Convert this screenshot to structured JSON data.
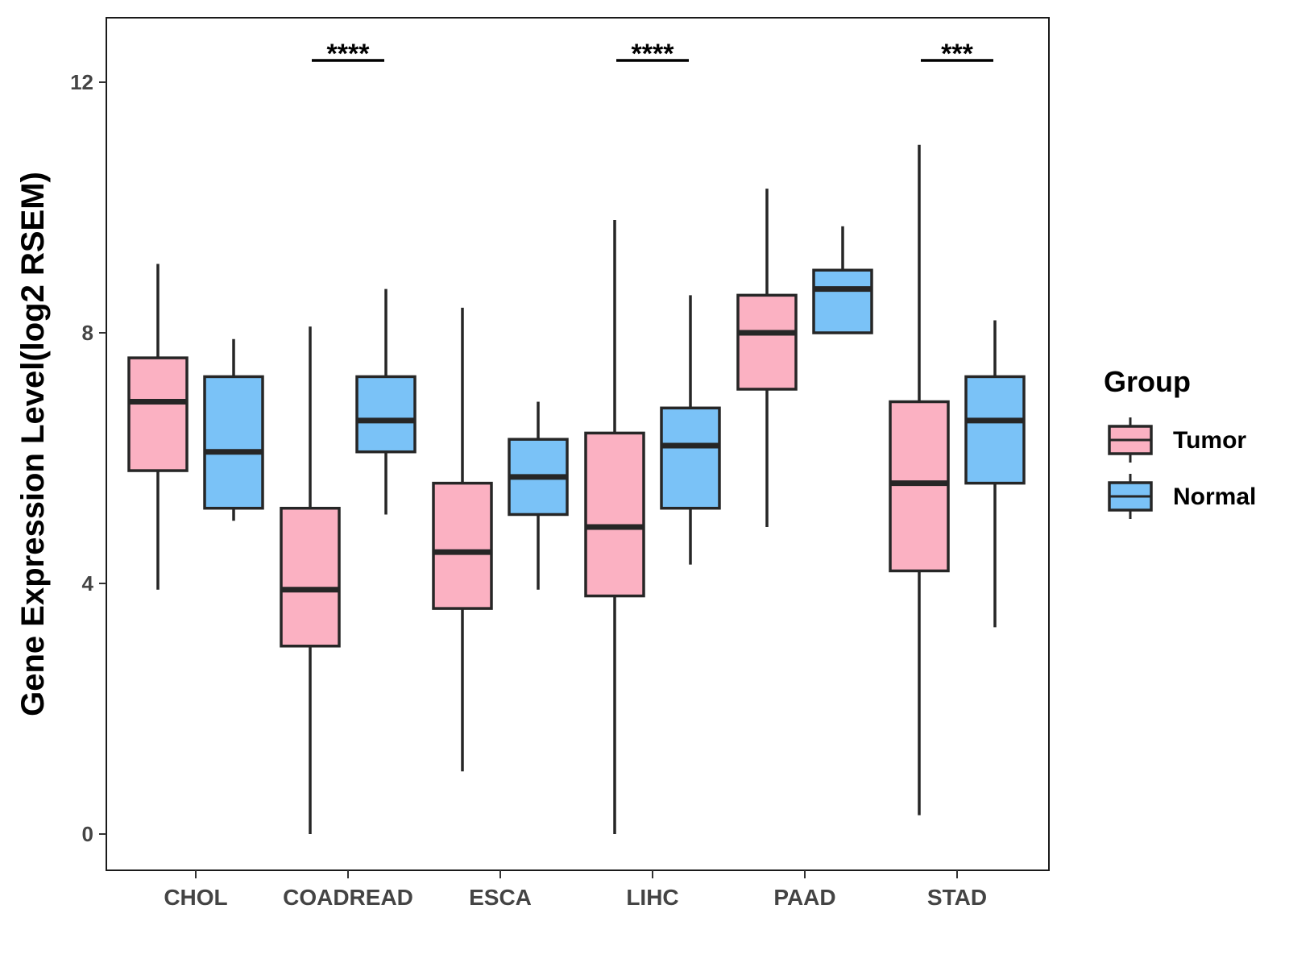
{
  "chart_data": {
    "type": "boxplot",
    "title": "",
    "xlabel": "",
    "ylabel": "Gene Expression Level(log2 RSEM)",
    "ylim": [
      -0.6,
      13
    ],
    "yticks": [
      0,
      4,
      8,
      12
    ],
    "categories": [
      "CHOL",
      "COADREAD",
      "ESCA",
      "LIHC",
      "PAAD",
      "STAD"
    ],
    "legend": {
      "title": "Group",
      "position": "right",
      "entries": [
        {
          "name": "Tumor",
          "color": "#FBB1C2"
        },
        {
          "name": "Normal",
          "color": "#7AC2F7"
        }
      ]
    },
    "series": [
      {
        "name": "Tumor",
        "color": "#FBB1C2",
        "boxes": [
          {
            "category": "CHOL",
            "whisker_low": 3.9,
            "q1": 5.8,
            "median": 6.9,
            "q3": 7.6,
            "whisker_high": 9.1
          },
          {
            "category": "COADREAD",
            "whisker_low": 0.0,
            "q1": 3.0,
            "median": 3.9,
            "q3": 5.2,
            "whisker_high": 8.1
          },
          {
            "category": "ESCA",
            "whisker_low": 1.0,
            "q1": 3.6,
            "median": 4.5,
            "q3": 5.6,
            "whisker_high": 8.4
          },
          {
            "category": "LIHC",
            "whisker_low": 0.0,
            "q1": 3.8,
            "median": 4.9,
            "q3": 6.4,
            "whisker_high": 9.8
          },
          {
            "category": "PAAD",
            "whisker_low": 4.9,
            "q1": 7.1,
            "median": 8.0,
            "q3": 8.6,
            "whisker_high": 10.3
          },
          {
            "category": "STAD",
            "whisker_low": 0.3,
            "q1": 4.2,
            "median": 5.6,
            "q3": 6.9,
            "whisker_high": 11.0
          }
        ]
      },
      {
        "name": "Normal",
        "color": "#7AC2F7",
        "boxes": [
          {
            "category": "CHOL",
            "whisker_low": 5.0,
            "q1": 5.2,
            "median": 6.1,
            "q3": 7.3,
            "whisker_high": 7.9
          },
          {
            "category": "COADREAD",
            "whisker_low": 5.1,
            "q1": 6.1,
            "median": 6.6,
            "q3": 7.3,
            "whisker_high": 8.7
          },
          {
            "category": "ESCA",
            "whisker_low": 3.9,
            "q1": 5.1,
            "median": 5.7,
            "q3": 6.3,
            "whisker_high": 6.9
          },
          {
            "category": "LIHC",
            "whisker_low": 4.3,
            "q1": 5.2,
            "median": 6.2,
            "q3": 6.8,
            "whisker_high": 8.6
          },
          {
            "category": "PAAD",
            "whisker_low": 8.0,
            "q1": 8.0,
            "median": 8.7,
            "q3": 9.0,
            "whisker_high": 9.7
          },
          {
            "category": "STAD",
            "whisker_low": 3.3,
            "q1": 5.6,
            "median": 6.6,
            "q3": 7.3,
            "whisker_high": 8.2
          }
        ]
      }
    ],
    "significance": [
      {
        "category": "COADREAD",
        "label": "****"
      },
      {
        "category": "LIHC",
        "label": "****"
      },
      {
        "category": "STAD",
        "label": "***"
      }
    ]
  }
}
